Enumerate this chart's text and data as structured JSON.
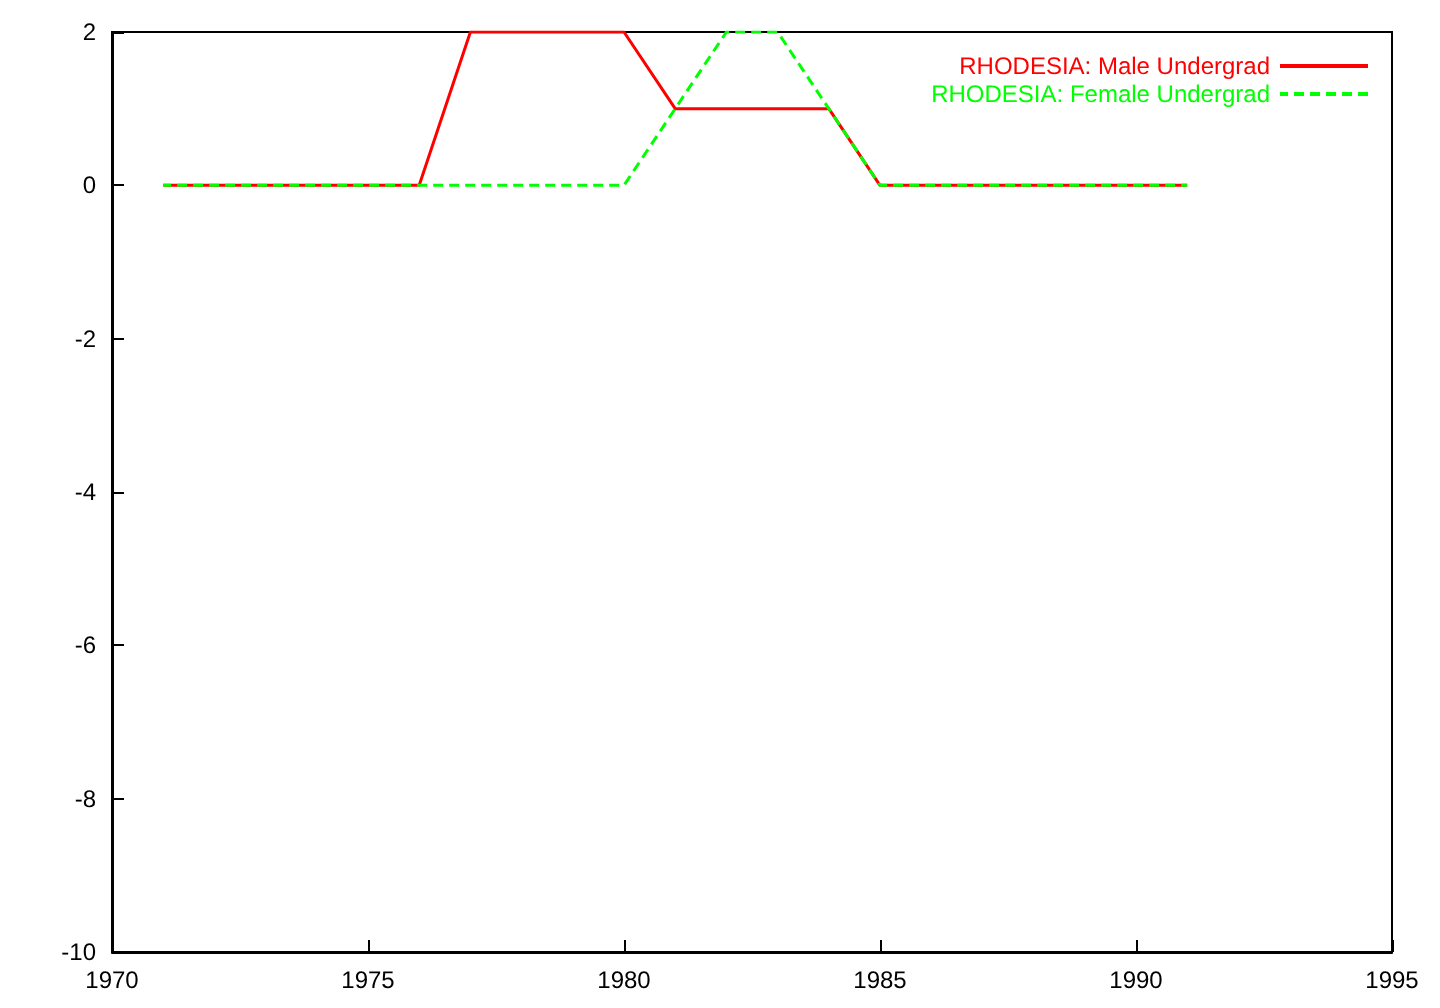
{
  "chart_data": {
    "type": "line",
    "x": [
      1971,
      1972,
      1973,
      1974,
      1975,
      1976,
      1977,
      1978,
      1979,
      1980,
      1981,
      1982,
      1983,
      1984,
      1985,
      1986,
      1987,
      1988,
      1989,
      1990,
      1991
    ],
    "series": [
      {
        "name": "RHODESIA: Male Undergrad",
        "color": "#ff0000",
        "line_style": "solid",
        "values": [
          0,
          0,
          0,
          0,
          0,
          0,
          2,
          2,
          2,
          2,
          1,
          1,
          1,
          1,
          0,
          0,
          0,
          0,
          0,
          0,
          0
        ]
      },
      {
        "name": "RHODESIA: Female Undergrad",
        "color": "#00ff00",
        "line_style": "dashed",
        "values": [
          0,
          0,
          0,
          0,
          0,
          0,
          0,
          0,
          0,
          0,
          1,
          2,
          2,
          1,
          0,
          0,
          0,
          0,
          0,
          0,
          0
        ]
      }
    ],
    "xlim": [
      1970,
      1995
    ],
    "xticks": [
      1970,
      1975,
      1980,
      1985,
      1990,
      1995
    ],
    "ylim": [
      -10,
      2
    ],
    "yticks": [
      -10,
      -8,
      -6,
      -4,
      -2,
      0,
      2
    ],
    "grid": false,
    "legend": "top right",
    "marker": "none"
  }
}
